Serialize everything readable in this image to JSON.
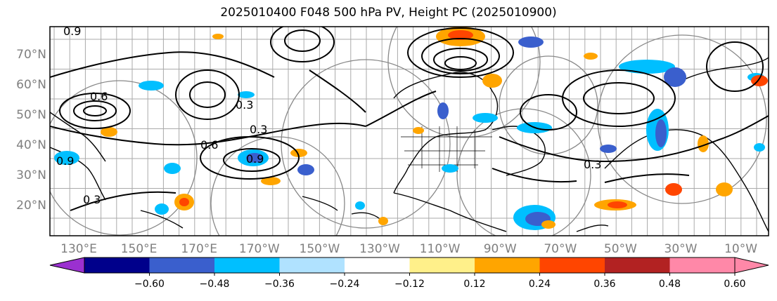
{
  "title": "2025010400 F048 500 hPa PV, Height PC (2025010900)",
  "lat_labels": [
    "70°N",
    "60°N",
    "50°N",
    "40°N",
    "30°N",
    "20°N"
  ],
  "lon_labels": [
    "130°E",
    "150°E",
    "170°E",
    "170°W",
    "150°W",
    "130°W",
    "110°W",
    "90°W",
    "70°W",
    "50°W",
    "30°W",
    "10°W"
  ],
  "contour_labels": [
    "0.3",
    "0.3",
    "0.6",
    "0.9",
    "0.3",
    "0.3",
    "0.6",
    "0.9",
    "0.9"
  ],
  "colorbar": {
    "ticks": [
      "−0.60",
      "−0.48",
      "−0.36",
      "−0.24",
      "−0.12",
      "0.12",
      "0.24",
      "0.36",
      "0.48",
      "0.60"
    ],
    "colors": [
      "#9b30d0",
      "#00008b",
      "#3a5fcd",
      "#00bfff",
      "#b0e2ff",
      "#ffffff",
      "#fff08a",
      "#ffa500",
      "#ff4500",
      "#b22222",
      "#ff88a8"
    ]
  }
}
